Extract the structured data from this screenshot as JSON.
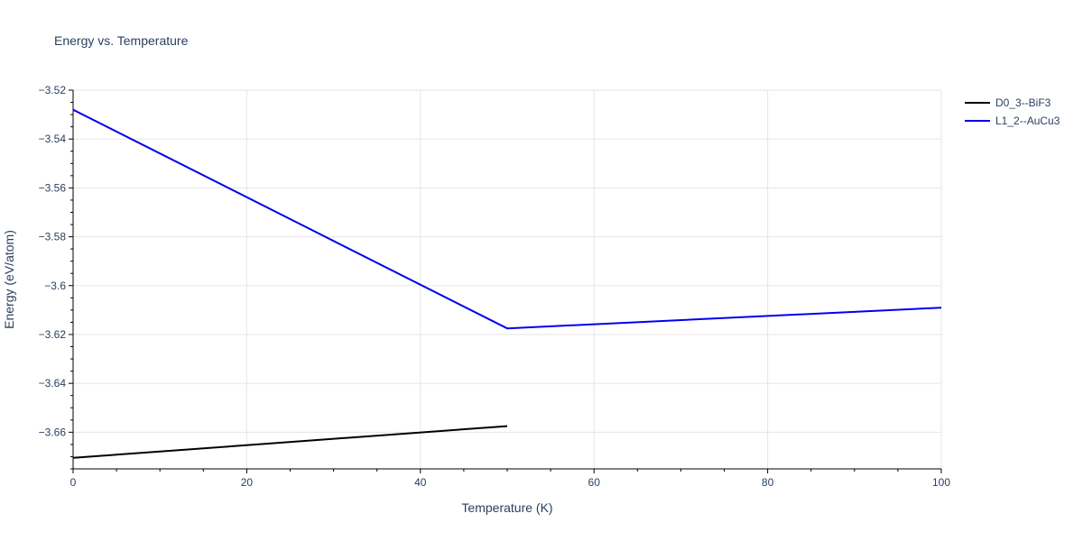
{
  "chart_data": {
    "type": "line",
    "title": "Energy vs. Temperature",
    "xlabel": "Temperature (K)",
    "ylabel": "Energy (eV/atom)",
    "xlim": [
      0,
      100
    ],
    "ylim": [
      -3.675,
      -3.52
    ],
    "x_ticks": [
      0,
      20,
      40,
      60,
      80,
      100
    ],
    "x_tick_labels": [
      "0",
      "20",
      "40",
      "60",
      "80",
      "100"
    ],
    "y_ticks": [
      -3.66,
      -3.64,
      -3.62,
      -3.6,
      -3.58,
      -3.56,
      -3.54,
      -3.52
    ],
    "y_tick_labels": [
      "−3.66",
      "−3.64",
      "−3.62",
      "−3.6",
      "−3.58",
      "−3.56",
      "−3.54",
      "−3.52"
    ],
    "grid": true,
    "legend_position": "top-right",
    "series": [
      {
        "name": "D0_3--BiF3",
        "color": "#000000",
        "x": [
          0,
          50
        ],
        "y": [
          -3.6705,
          -3.6575
        ]
      },
      {
        "name": "L1_2--AuCu3",
        "color": "#0000ee",
        "x": [
          0,
          50,
          100
        ],
        "y": [
          -3.528,
          -3.6175,
          -3.609
        ]
      }
    ]
  }
}
